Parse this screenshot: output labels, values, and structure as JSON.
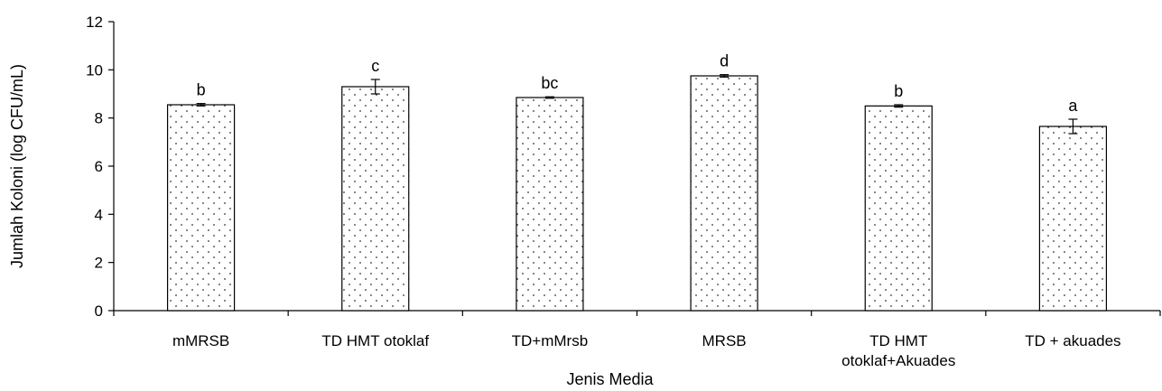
{
  "chart_data": {
    "type": "bar",
    "xlabel": "Jenis Media",
    "ylabel": "Jumlah Koloni (log CFU/mL)",
    "ylim": [
      0,
      12
    ],
    "yticks": [
      0,
      2,
      4,
      6,
      8,
      10,
      12
    ],
    "grid": false,
    "categories": [
      [
        "mMRSB"
      ],
      [
        "TD HMT otoklaf"
      ],
      [
        "TD+mMrsb"
      ],
      [
        "MRSB"
      ],
      [
        "TD HMT",
        "otoklaf+Akuades"
      ],
      [
        "TD + akuades"
      ]
    ],
    "values": [
      8.55,
      9.3,
      8.85,
      9.75,
      8.5,
      7.65
    ],
    "errors": [
      0.05,
      0.3,
      0.03,
      0.05,
      0.05,
      0.3
    ],
    "letters": [
      "b",
      "c",
      "bc",
      "d",
      "b",
      "a"
    ],
    "bar_pattern": "dotted"
  }
}
